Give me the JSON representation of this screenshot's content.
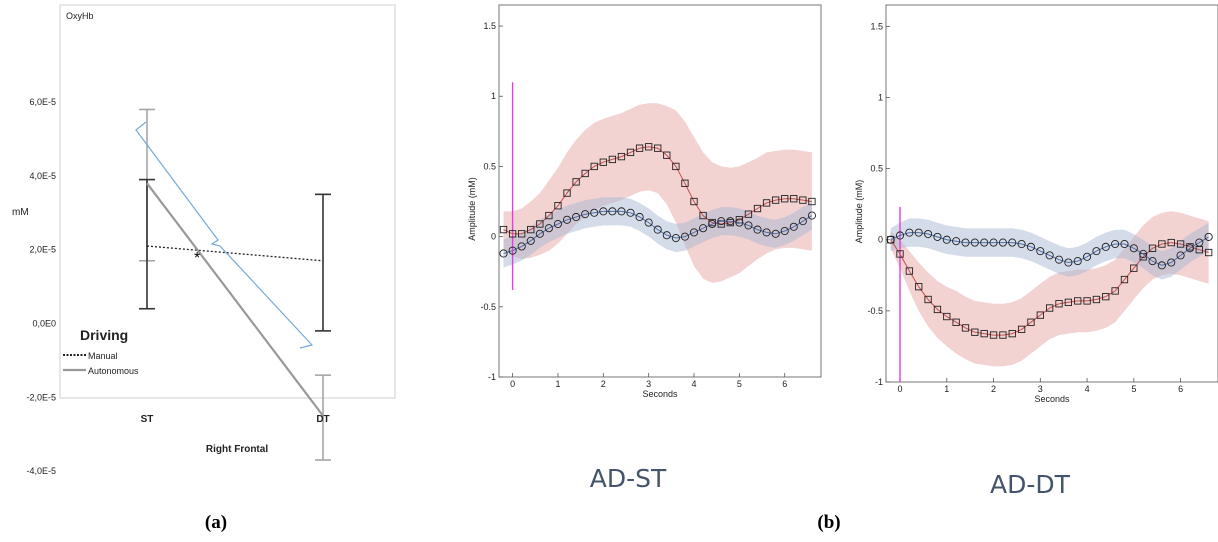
{
  "panel_captions": [
    "(a)",
    "(b)"
  ],
  "chart_data": [
    {
      "type": "line",
      "title": "OxyHb",
      "xlabel": "Right Frontal",
      "ylabel": "mM",
      "categories": [
        "ST",
        "DT"
      ],
      "ylim": [
        -4e-05,
        6e-05
      ],
      "yticks": [
        6e-05,
        4e-05,
        2e-05,
        0.0,
        -2e-05,
        -4e-05
      ],
      "ytick_labels": [
        "6,0E-5",
        "4,0E-5",
        "2,0E-5",
        "0,0E0",
        "-2,0E-5",
        "-4,0E-5"
      ],
      "legend_title": "Driving",
      "legend_position": "bottom-left",
      "annotation": "*",
      "series": [
        {
          "name": "Manual",
          "style": "dotted",
          "color": "#222222",
          "values": [
            2.1e-05,
            1.7e-05
          ],
          "err_low": [
            4e-06,
            -2e-06
          ],
          "err_high": [
            3.9e-05,
            3.5e-05
          ]
        },
        {
          "name": "Autonomous",
          "style": "solid",
          "color": "#999999",
          "values": [
            3.8e-05,
            -2.5e-05
          ],
          "err_low": [
            1.7e-05,
            -3.7e-05
          ],
          "err_high": [
            5.8e-05,
            -1.4e-05
          ]
        }
      ]
    },
    {
      "type": "line",
      "subtitle": "AD-ST",
      "xlabel": "Seconds",
      "ylabel": "Amplitude    (mM)",
      "xlim": [
        -0.3,
        6.8
      ],
      "ylim": [
        -1,
        1.65
      ],
      "xticks": [
        0,
        1,
        2,
        3,
        4,
        5,
        6
      ],
      "yticks": [
        -1,
        -0.5,
        0,
        0.5,
        1,
        1.5
      ],
      "ytick_labels": [
        "-1",
        "-0.5",
        "0",
        "0.5",
        "1",
        "1.5"
      ],
      "event_marker": {
        "x": 0,
        "y": [
          -0.38,
          1.1
        ],
        "color": "#e040e0"
      },
      "x": [
        -0.2,
        0.0,
        0.2,
        0.4,
        0.6,
        0.8,
        1.0,
        1.2,
        1.4,
        1.6,
        1.8,
        2.0,
        2.2,
        2.4,
        2.6,
        2.8,
        3.0,
        3.2,
        3.4,
        3.6,
        3.8,
        4.0,
        4.2,
        4.4,
        4.6,
        4.8,
        5.0,
        5.2,
        5.4,
        5.6,
        5.8,
        6.0,
        6.2,
        6.4,
        6.6
      ],
      "series": [
        {
          "name": "",
          "marker": "square",
          "line_color": "#c0504d",
          "band_color": "#e8a5a5",
          "values": [
            0.05,
            0.02,
            0.02,
            0.05,
            0.09,
            0.15,
            0.22,
            0.31,
            0.39,
            0.45,
            0.5,
            0.53,
            0.55,
            0.57,
            0.6,
            0.63,
            0.64,
            0.63,
            0.58,
            0.5,
            0.38,
            0.25,
            0.15,
            0.1,
            0.09,
            0.1,
            0.12,
            0.16,
            0.2,
            0.24,
            0.26,
            0.27,
            0.27,
            0.26,
            0.25
          ],
          "sd": [
            0.13,
            0.16,
            0.18,
            0.2,
            0.22,
            0.25,
            0.27,
            0.29,
            0.3,
            0.31,
            0.31,
            0.31,
            0.31,
            0.31,
            0.31,
            0.31,
            0.31,
            0.32,
            0.35,
            0.4,
            0.44,
            0.46,
            0.45,
            0.43,
            0.41,
            0.39,
            0.38,
            0.37,
            0.36,
            0.36,
            0.35,
            0.35,
            0.35,
            0.35,
            0.35
          ]
        },
        {
          "name": "",
          "marker": "circle",
          "line_color": "#4f6fa8",
          "band_color": "#a9b7d3",
          "values": [
            -0.12,
            -0.1,
            -0.07,
            -0.03,
            0.02,
            0.06,
            0.09,
            0.12,
            0.14,
            0.16,
            0.17,
            0.18,
            0.18,
            0.18,
            0.17,
            0.14,
            0.1,
            0.05,
            0.01,
            -0.01,
            0.0,
            0.03,
            0.06,
            0.09,
            0.11,
            0.11,
            0.1,
            0.08,
            0.05,
            0.03,
            0.02,
            0.04,
            0.07,
            0.11,
            0.15
          ],
          "sd": [
            0.1,
            0.1,
            0.1,
            0.1,
            0.1,
            0.1,
            0.1,
            0.1,
            0.1,
            0.1,
            0.1,
            0.1,
            0.1,
            0.1,
            0.1,
            0.1,
            0.1,
            0.1,
            0.1,
            0.1,
            0.1,
            0.1,
            0.1,
            0.1,
            0.1,
            0.1,
            0.1,
            0.1,
            0.1,
            0.1,
            0.1,
            0.1,
            0.1,
            0.1,
            0.1
          ]
        }
      ]
    },
    {
      "type": "line",
      "subtitle": "AD-DT",
      "xlabel": "Seconds",
      "ylabel": "Amplitude    (mM)",
      "xlim": [
        -0.3,
        6.8
      ],
      "ylim": [
        -1,
        1.65
      ],
      "xticks": [
        0,
        1,
        2,
        3,
        4,
        5,
        6
      ],
      "yticks": [
        -1,
        -0.5,
        0,
        0.5,
        1,
        1.5
      ],
      "ytick_labels": [
        "-1",
        "-0.5",
        "0",
        "0.5",
        "1",
        "1.5"
      ],
      "event_marker": {
        "x": 0,
        "y": [
          -1,
          0.23
        ],
        "color": "#e040e0"
      },
      "x": [
        -0.2,
        0.0,
        0.2,
        0.4,
        0.6,
        0.8,
        1.0,
        1.2,
        1.4,
        1.6,
        1.8,
        2.0,
        2.2,
        2.4,
        2.6,
        2.8,
        3.0,
        3.2,
        3.4,
        3.6,
        3.8,
        4.0,
        4.2,
        4.4,
        4.6,
        4.8,
        5.0,
        5.2,
        5.4,
        5.6,
        5.8,
        6.0,
        6.2,
        6.4,
        6.6
      ],
      "series": [
        {
          "name": "",
          "marker": "square",
          "line_color": "#c0504d",
          "band_color": "#e8a5a5",
          "values": [
            0.0,
            -0.1,
            -0.22,
            -0.33,
            -0.42,
            -0.49,
            -0.54,
            -0.58,
            -0.62,
            -0.65,
            -0.66,
            -0.67,
            -0.67,
            -0.66,
            -0.63,
            -0.58,
            -0.53,
            -0.48,
            -0.45,
            -0.44,
            -0.43,
            -0.43,
            -0.42,
            -0.4,
            -0.36,
            -0.28,
            -0.2,
            -0.12,
            -0.06,
            -0.03,
            -0.02,
            -0.03,
            -0.05,
            -0.07,
            -0.09
          ],
          "sd": [
            0.06,
            0.1,
            0.14,
            0.17,
            0.19,
            0.2,
            0.21,
            0.22,
            0.22,
            0.22,
            0.22,
            0.22,
            0.22,
            0.22,
            0.22,
            0.22,
            0.22,
            0.22,
            0.22,
            0.22,
            0.22,
            0.22,
            0.22,
            0.22,
            0.22,
            0.22,
            0.22,
            0.22,
            0.22,
            0.22,
            0.22,
            0.22,
            0.22,
            0.22,
            0.22
          ]
        },
        {
          "name": "",
          "marker": "circle",
          "line_color": "#4f6fa8",
          "band_color": "#a9b7d3",
          "values": [
            0.0,
            0.03,
            0.05,
            0.05,
            0.04,
            0.02,
            0.0,
            -0.01,
            -0.02,
            -0.02,
            -0.02,
            -0.02,
            -0.02,
            -0.02,
            -0.03,
            -0.05,
            -0.08,
            -0.11,
            -0.14,
            -0.16,
            -0.15,
            -0.12,
            -0.08,
            -0.05,
            -0.03,
            -0.03,
            -0.06,
            -0.1,
            -0.15,
            -0.18,
            -0.16,
            -0.11,
            -0.06,
            -0.02,
            0.02
          ],
          "sd": [
            0.08,
            0.09,
            0.1,
            0.1,
            0.1,
            0.1,
            0.1,
            0.1,
            0.1,
            0.1,
            0.1,
            0.1,
            0.1,
            0.1,
            0.1,
            0.1,
            0.1,
            0.1,
            0.1,
            0.1,
            0.1,
            0.1,
            0.1,
            0.1,
            0.1,
            0.1,
            0.1,
            0.1,
            0.1,
            0.1,
            0.1,
            0.1,
            0.1,
            0.1,
            0.1
          ]
        }
      ]
    }
  ]
}
